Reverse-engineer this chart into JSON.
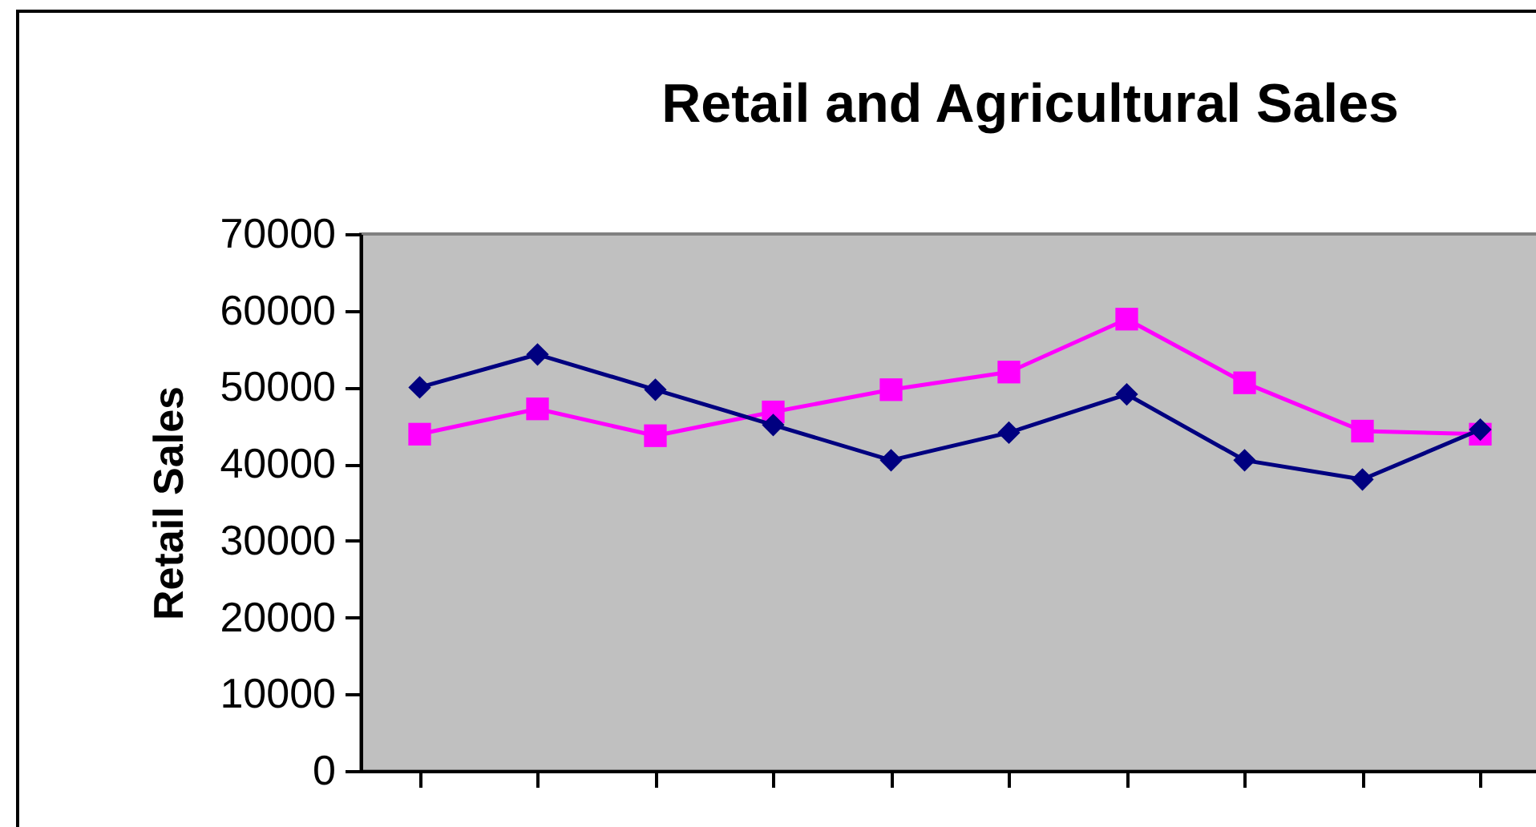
{
  "chart_data": {
    "type": "line",
    "title": "Retail  and Agricultural Sales",
    "ylabel": "Retail  Sales",
    "categories": [
      null,
      null,
      null,
      null,
      null,
      null,
      null,
      null,
      null,
      null
    ],
    "series": [
      {
        "color": "#000080",
        "marker": "diamond",
        "values": [
          50000,
          54300,
          49700,
          45100,
          40500,
          44100,
          49100,
          40500,
          38000,
          44500
        ]
      },
      {
        "color": "#ff00ff",
        "marker": "square",
        "values": [
          43900,
          47200,
          43700,
          46800,
          49700,
          52000,
          58900,
          50600,
          44300,
          43900
        ]
      }
    ],
    "ylim": [
      0,
      70000
    ],
    "yticks": [
      0,
      10000,
      20000,
      30000,
      40000,
      50000,
      60000,
      70000
    ],
    "grid": false
  }
}
